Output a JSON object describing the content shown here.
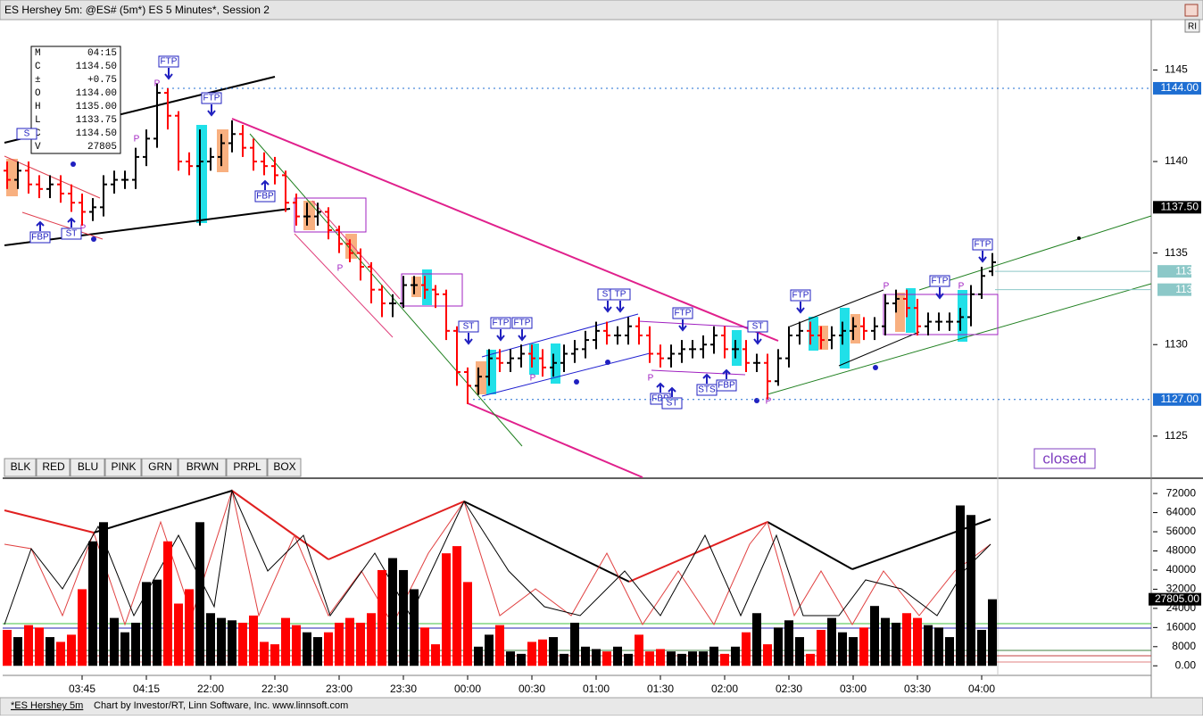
{
  "window": {
    "title": "ES Hershey 5m: @ES# (5m*) ES 5 Minutes*, Session 2",
    "corner_button": "RI",
    "buttons": [
      "BLK",
      "RED",
      "BLU",
      "PINK",
      "GRN",
      "BRWN",
      "PRPL",
      "BOX"
    ],
    "status_tab": "*ES Hershey 5m",
    "status_text": "Chart by Investor/RT, Linn Software, Inc. www.linnsoft.com",
    "info_box": [
      [
        "M",
        "04:15"
      ],
      [
        "C",
        "1134.50"
      ],
      [
        "±",
        "+0.75"
      ],
      [
        "O",
        "1134.00"
      ],
      [
        "H",
        "1135.00"
      ],
      [
        "L",
        "1133.75"
      ],
      [
        "C",
        "1134.50"
      ],
      [
        "V",
        "27805"
      ]
    ],
    "annotations": [
      "FTP",
      "FTP",
      "FBP",
      "FBP",
      "ST",
      "FTP",
      "FTP",
      "ST",
      "ST",
      "TP",
      "FTP",
      "ST",
      "STS",
      "FBP",
      "FBP",
      "ST",
      "FTP",
      "FTP",
      "FTP",
      "S"
    ],
    "pivots": [
      "P",
      "P",
      "P",
      "P",
      "P",
      "P",
      "P",
      "P",
      "P"
    ],
    "status_label": "closed"
  },
  "chart_data": [
    {
      "type": "ohlc",
      "up_color": "#000000",
      "down_color": "#ff0000",
      "categories": [
        null,
        null,
        null,
        null,
        null,
        null,
        null,
        "03:45",
        null,
        null,
        null,
        null,
        null,
        "04:15",
        null,
        null,
        null,
        null,
        null,
        "22:00",
        null,
        null,
        null,
        null,
        null,
        "22:30",
        null,
        null,
        null,
        null,
        null,
        "23:00",
        null,
        null,
        null,
        null,
        null,
        "23:30",
        null,
        null,
        null,
        null,
        null,
        "00:00",
        null,
        null,
        null,
        null,
        null,
        "00:30",
        null,
        null,
        null,
        null,
        null,
        "01:00",
        null,
        null,
        null,
        null,
        null,
        "01:30",
        null,
        null,
        null,
        null,
        null,
        "02:00",
        null,
        null,
        null,
        null,
        null,
        "02:30",
        null,
        null,
        null,
        null,
        null,
        "03:00",
        null,
        null,
        null,
        null,
        null,
        "03:30",
        null,
        null,
        null,
        null,
        null,
        "04:00",
        null
      ],
      "open": [
        1139.5,
        1139.0,
        1139.5,
        1138.75,
        1138.5,
        1138.75,
        1138.25,
        1137.75,
        1137.25,
        1137.5,
        1138.75,
        1139.0,
        1139.0,
        1140.25,
        1141.25,
        1143.75,
        1142.5,
        1140.0,
        1139.75,
        1140.0,
        1140.25,
        1141.0,
        1141.5,
        1140.75,
        1140.0,
        1139.75,
        1139.25,
        1137.75,
        1137.0,
        1137.0,
        1137.25,
        1136.25,
        1135.5,
        1135.0,
        1134.25,
        1133.0,
        1132.25,
        1132.25,
        1133.25,
        1133.25,
        1133.0,
        1132.75,
        1130.75,
        1128.5,
        1127.75,
        1128.25,
        1129.25,
        1129.0,
        1129.25,
        1129.5,
        1129.25,
        1128.75,
        1129.0,
        1129.5,
        1129.75,
        1130.25,
        1130.75,
        1130.5,
        1130.5,
        1131.0,
        1130.5,
        1129.5,
        1129.25,
        1129.5,
        1129.75,
        1129.75,
        1130.0,
        1130.5,
        1129.75,
        1129.75,
        1129.0,
        1129.0,
        1128.0,
        1129.25,
        1130.5,
        1130.75,
        1130.5,
        1130.25,
        1130.5,
        1130.75,
        1131.0,
        1130.75,
        1131.0,
        1132.25,
        1132.5,
        1132.0,
        1131.0,
        1131.25,
        1131.25,
        1131.25,
        1131.5,
        1132.75,
        1134.0
      ],
      "high": [
        1140.0,
        1140.0,
        1140.0,
        1139.25,
        1139.25,
        1139.25,
        1138.75,
        1138.25,
        1138.0,
        1139.25,
        1139.5,
        1139.5,
        1140.75,
        1141.75,
        1144.25,
        1144.0,
        1142.75,
        1140.5,
        1141.75,
        1140.75,
        1141.5,
        1142.25,
        1142.0,
        1141.25,
        1140.5,
        1140.25,
        1139.5,
        1138.25,
        1137.75,
        1137.75,
        1137.5,
        1136.5,
        1135.75,
        1135.25,
        1134.5,
        1133.25,
        1132.75,
        1133.75,
        1133.75,
        1133.75,
        1133.25,
        1133.0,
        1131.0,
        1128.75,
        1128.75,
        1129.75,
        1129.75,
        1129.75,
        1130.0,
        1130.0,
        1129.75,
        1129.5,
        1130.0,
        1130.25,
        1130.75,
        1131.25,
        1131.25,
        1131.0,
        1131.5,
        1131.5,
        1131.0,
        1130.0,
        1130.0,
        1130.25,
        1130.25,
        1130.5,
        1131.0,
        1131.0,
        1130.25,
        1130.25,
        1129.5,
        1129.5,
        1129.75,
        1131.0,
        1131.25,
        1131.25,
        1131.0,
        1131.0,
        1131.25,
        1131.5,
        1131.5,
        1131.5,
        1132.75,
        1133.0,
        1133.0,
        1132.5,
        1131.75,
        1131.75,
        1131.75,
        1132.0,
        1133.25,
        1134.25,
        1135.0
      ],
      "low": [
        1138.5,
        1138.5,
        1138.25,
        1138.0,
        1138.0,
        1137.75,
        1137.25,
        1136.5,
        1136.75,
        1137.0,
        1138.25,
        1138.5,
        1138.5,
        1139.75,
        1140.75,
        1141.75,
        1139.5,
        1139.25,
        1136.5,
        1139.5,
        1139.75,
        1140.5,
        1140.25,
        1139.5,
        1139.25,
        1138.75,
        1137.25,
        1136.5,
        1136.5,
        1136.5,
        1135.75,
        1135.0,
        1134.5,
        1133.5,
        1132.25,
        1131.5,
        1131.5,
        1132.0,
        1132.75,
        1132.5,
        1132.0,
        1130.25,
        1127.75,
        1126.75,
        1127.25,
        1127.75,
        1128.5,
        1128.5,
        1128.75,
        1128.75,
        1128.25,
        1128.25,
        1128.5,
        1129.0,
        1129.25,
        1129.75,
        1130.0,
        1130.0,
        1130.0,
        1130.0,
        1129.0,
        1128.75,
        1128.75,
        1129.0,
        1129.25,
        1129.25,
        1129.5,
        1129.25,
        1129.25,
        1128.5,
        1128.5,
        1127.0,
        1127.75,
        1128.75,
        1130.0,
        1130.0,
        1129.75,
        1129.75,
        1130.0,
        1130.25,
        1130.25,
        1130.25,
        1130.5,
        1131.75,
        1131.5,
        1130.5,
        1130.5,
        1130.75,
        1130.75,
        1130.75,
        1131.0,
        1132.5,
        1133.75
      ],
      "close": [
        1139.0,
        1139.5,
        1138.75,
        1138.5,
        1138.75,
        1138.25,
        1137.75,
        1137.25,
        1137.5,
        1138.75,
        1139.0,
        1139.0,
        1140.25,
        1141.25,
        1143.75,
        1142.5,
        1140.0,
        1139.75,
        1140.0,
        1140.25,
        1141.0,
        1141.5,
        1140.75,
        1140.0,
        1139.75,
        1139.25,
        1137.75,
        1137.0,
        1137.0,
        1137.25,
        1136.25,
        1135.5,
        1135.0,
        1134.25,
        1133.0,
        1132.25,
        1132.25,
        1133.25,
        1133.25,
        1133.0,
        1132.75,
        1130.75,
        1128.5,
        1127.75,
        1128.25,
        1129.25,
        1129.0,
        1129.25,
        1129.5,
        1129.25,
        1128.75,
        1129.0,
        1129.5,
        1129.75,
        1130.25,
        1130.75,
        1130.5,
        1130.5,
        1131.0,
        1130.5,
        1129.5,
        1129.25,
        1129.5,
        1129.75,
        1129.75,
        1130.0,
        1130.5,
        1129.75,
        1129.75,
        1129.0,
        1129.0,
        1128.0,
        1129.25,
        1130.5,
        1130.75,
        1130.5,
        1130.25,
        1130.5,
        1130.75,
        1131.0,
        1130.75,
        1131.0,
        1132.25,
        1132.5,
        1132.0,
        1131.0,
        1131.25,
        1131.25,
        1131.25,
        1131.5,
        1132.75,
        1133.75,
        1134.5
      ],
      "ylim": [
        1122.75,
        1147.75
      ],
      "yticks": [
        1125,
        1130,
        1135,
        1140,
        1145
      ],
      "axis_markers": [
        {
          "value": 1144,
          "label": "1144.00",
          "color": "#1e6ed2"
        },
        {
          "value": 1137.5,
          "label": "1137.50",
          "color": "#000000"
        },
        {
          "value": 1134,
          "color": "#8cc8c8"
        },
        {
          "value": 1133,
          "color": "#8cc8c8"
        },
        {
          "value": 1127,
          "label": "1127.00",
          "color": "#1e6ed2"
        }
      ]
    },
    {
      "type": "bar",
      "values": [
        15000,
        12000,
        17000,
        16000,
        12000,
        10000,
        13000,
        32000,
        52000,
        60000,
        20000,
        14000,
        18000,
        35000,
        36000,
        52000,
        26000,
        32000,
        60000,
        22000,
        20000,
        19000,
        18000,
        21000,
        10000,
        9000,
        20000,
        17000,
        14000,
        12000,
        14000,
        18000,
        20000,
        18000,
        22000,
        40000,
        45000,
        40000,
        32000,
        16000,
        9000,
        47000,
        50000,
        35000,
        8000,
        13000,
        17000,
        6000,
        5000,
        10000,
        11000,
        12000,
        5000,
        18000,
        8000,
        7000,
        6000,
        8000,
        5000,
        13000,
        6000,
        7000,
        6000,
        5000,
        6000,
        6000,
        8000,
        5000,
        8000,
        14000,
        22000,
        9000,
        16000,
        19000,
        12000,
        5000,
        15000,
        20000,
        14000,
        12000,
        16000,
        25000,
        20000,
        18000,
        22000,
        20000,
        17000,
        16000,
        12000,
        67000,
        63000,
        15000,
        27805
      ],
      "ylim": [
        -4000,
        78000
      ],
      "yticks": [
        {
          "value": 0,
          "label": "0.00"
        },
        8000,
        16000,
        24000,
        32000,
        40000,
        48000,
        56000,
        64000,
        72000
      ],
      "marker": {
        "value": 27805,
        "label": "27805.00",
        "color": "#000000"
      }
    }
  ]
}
